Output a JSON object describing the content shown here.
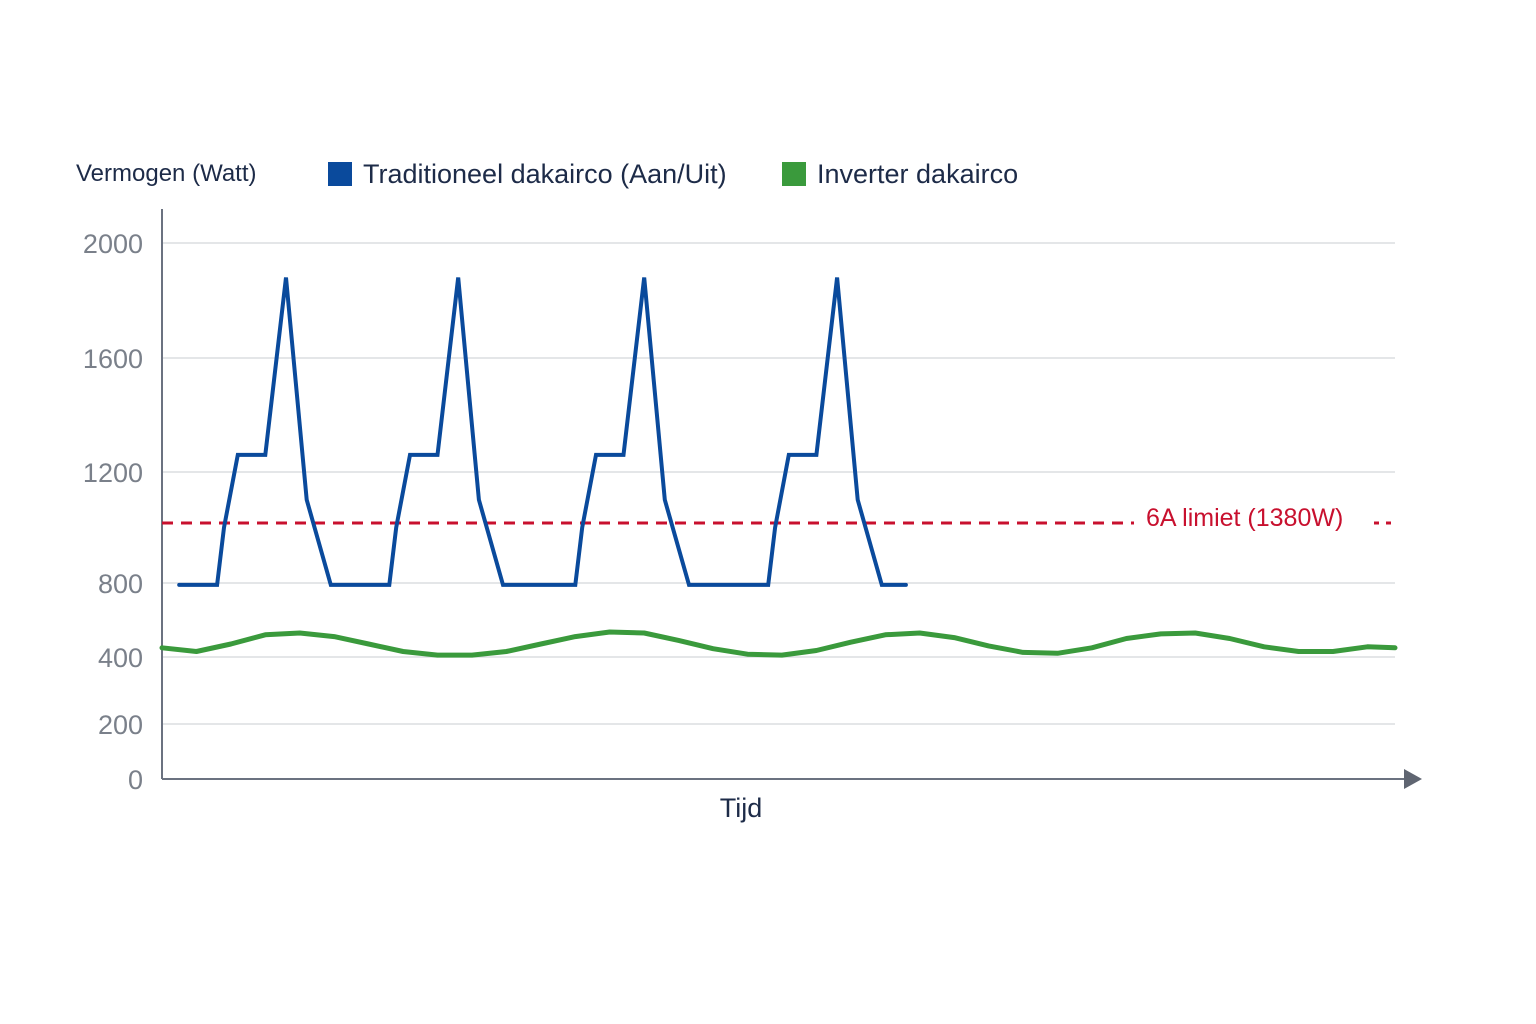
{
  "chart_data": {
    "type": "line",
    "title": "",
    "ylabel": "Vermogen (Watt)",
    "xlabel": "Tijd",
    "y_ticks": [
      "0",
      "200",
      "400",
      "800",
      "1200",
      "1600",
      "2000"
    ],
    "grid": true,
    "legend_position": "top",
    "series": [
      {
        "name": "Traditioneel dakairco (Aan/Uit)",
        "color": "#0a4a9c",
        "values": [
          [
            0.5,
            790
          ],
          [
            1.6,
            790
          ],
          [
            1.8,
            1000
          ],
          [
            2.2,
            1260
          ],
          [
            3.0,
            1260
          ],
          [
            3.6,
            1880
          ],
          [
            4.2,
            1100
          ],
          [
            4.9,
            790
          ],
          [
            6.6,
            790
          ],
          [
            6.8,
            1000
          ],
          [
            7.2,
            1260
          ],
          [
            8.0,
            1260
          ],
          [
            8.6,
            1880
          ],
          [
            9.2,
            1100
          ],
          [
            9.9,
            790
          ],
          [
            12.0,
            790
          ],
          [
            12.2,
            1000
          ],
          [
            12.6,
            1260
          ],
          [
            13.4,
            1260
          ],
          [
            14.0,
            1880
          ],
          [
            14.6,
            1100
          ],
          [
            15.3,
            790
          ],
          [
            17.6,
            790
          ],
          [
            17.8,
            1000
          ],
          [
            18.2,
            1260
          ],
          [
            19.0,
            1260
          ],
          [
            19.6,
            1880
          ],
          [
            20.2,
            1100
          ],
          [
            20.9,
            790
          ],
          [
            21.6,
            790
          ]
        ]
      },
      {
        "name": "Inverter dakairco",
        "color": "#3a9a3c",
        "values": [
          [
            0.0,
            450
          ],
          [
            1.0,
            430
          ],
          [
            2.0,
            470
          ],
          [
            3.0,
            520
          ],
          [
            4.0,
            530
          ],
          [
            5.0,
            510
          ],
          [
            6.0,
            470
          ],
          [
            7.0,
            430
          ],
          [
            8.0,
            410
          ],
          [
            9.0,
            410
          ],
          [
            10.0,
            430
          ],
          [
            11.0,
            470
          ],
          [
            12.0,
            510
          ],
          [
            13.0,
            535
          ],
          [
            14.0,
            530
          ],
          [
            15.0,
            490
          ],
          [
            16.0,
            445
          ],
          [
            17.0,
            415
          ],
          [
            18.0,
            410
          ],
          [
            19.0,
            435
          ],
          [
            20.0,
            480
          ],
          [
            21.0,
            520
          ],
          [
            22.0,
            530
          ],
          [
            23.0,
            505
          ],
          [
            24.0,
            460
          ],
          [
            25.0,
            425
          ],
          [
            26.0,
            420
          ],
          [
            27.0,
            450
          ],
          [
            28.0,
            500
          ],
          [
            29.0,
            525
          ],
          [
            30.0,
            530
          ],
          [
            31.0,
            500
          ],
          [
            32.0,
            455
          ],
          [
            33.0,
            430
          ],
          [
            34.0,
            430
          ],
          [
            35.0,
            455
          ],
          [
            35.8,
            450
          ]
        ]
      }
    ],
    "reference_line": {
      "label": "6A limiet (1380W)",
      "color": "#c8102e",
      "value": 1380
    }
  }
}
